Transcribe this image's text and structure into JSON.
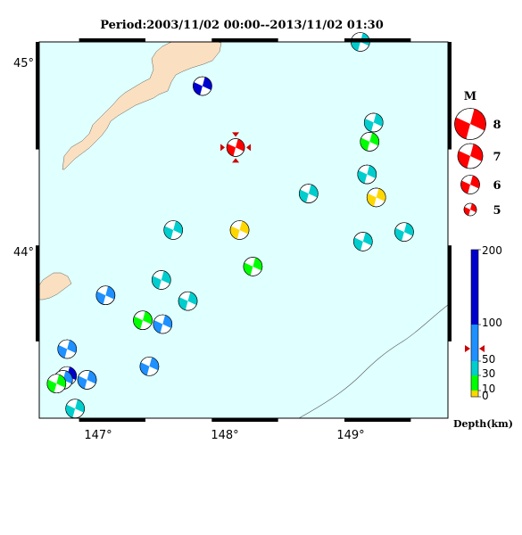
{
  "title": "Period:2003/11/02 00:00--2013/11/02 01:30",
  "axes": {
    "lat_ticks": [
      "45°",
      "44°"
    ],
    "lon_ticks": [
      "147°",
      "148°",
      "149°"
    ]
  },
  "colors": {
    "sea": "#e0ffff",
    "land": "#fae0c0",
    "mainshock": "#ff0000",
    "depth_scale": [
      "#ffd700",
      "#00ff00",
      "#00cdcd",
      "#1e90ff",
      "#0000cd"
    ]
  },
  "magnitude_legend": {
    "header": "M",
    "labels": [
      "8",
      "7",
      "6",
      "5"
    ]
  },
  "depth_colorbar": {
    "tick_labels": [
      "200",
      "100",
      "50",
      "30",
      "10",
      "0"
    ],
    "caption": "Depth(km)",
    "mainshock_marker_depth_km": 67
  },
  "events": [
    {
      "lon": 148.18,
      "lat": 44.51,
      "color": "#ff0000",
      "main": true
    },
    {
      "lon": 147.93,
      "lat": 44.83,
      "color": "#0000cd"
    },
    {
      "lon": 149.12,
      "lat": 45.06,
      "color": "#00cdcd"
    },
    {
      "lon": 149.22,
      "lat": 44.64,
      "color": "#00cdcd"
    },
    {
      "lon": 149.19,
      "lat": 44.54,
      "color": "#00ff00"
    },
    {
      "lon": 149.17,
      "lat": 44.37,
      "color": "#00cdcd"
    },
    {
      "lon": 149.24,
      "lat": 44.25,
      "color": "#ffd700"
    },
    {
      "lon": 148.73,
      "lat": 44.27,
      "color": "#00cdcd"
    },
    {
      "lon": 147.71,
      "lat": 44.08,
      "color": "#00cdcd"
    },
    {
      "lon": 148.21,
      "lat": 44.08,
      "color": "#ffd700"
    },
    {
      "lon": 148.31,
      "lat": 43.89,
      "color": "#00ff00"
    },
    {
      "lon": 149.14,
      "lat": 44.02,
      "color": "#00cdcd"
    },
    {
      "lon": 149.45,
      "lat": 44.07,
      "color": "#00cdcd"
    },
    {
      "lon": 147.2,
      "lat": 43.74,
      "color": "#1e90ff"
    },
    {
      "lon": 147.62,
      "lat": 43.82,
      "color": "#00cdcd"
    },
    {
      "lon": 147.82,
      "lat": 43.71,
      "color": "#00cdcd"
    },
    {
      "lon": 147.48,
      "lat": 43.61,
      "color": "#00ff00"
    },
    {
      "lon": 147.63,
      "lat": 43.59,
      "color": "#1e90ff"
    },
    {
      "lon": 146.91,
      "lat": 43.46,
      "color": "#1e90ff"
    },
    {
      "lon": 147.53,
      "lat": 43.37,
      "color": "#1e90ff"
    },
    {
      "lon": 146.91,
      "lat": 43.32,
      "color": "#0000cd"
    },
    {
      "lon": 146.88,
      "lat": 43.3,
      "color": "#1e90ff"
    },
    {
      "lon": 147.06,
      "lat": 43.3,
      "color": "#1e90ff"
    },
    {
      "lon": 146.83,
      "lat": 43.28,
      "color": "#00ff00"
    },
    {
      "lon": 146.97,
      "lat": 43.15,
      "color": "#00cdcd"
    }
  ]
}
